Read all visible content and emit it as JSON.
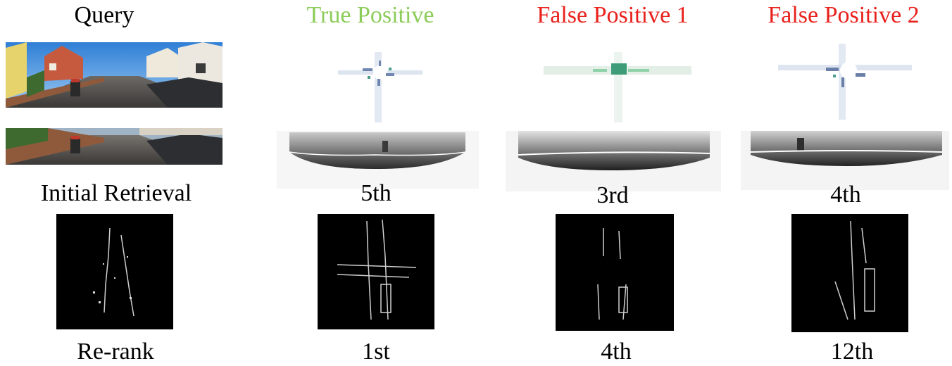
{
  "headers": {
    "query": "Query",
    "true_positive": "True Positive",
    "false_positive_1": "False Positive 1",
    "false_positive_2": "False Positive 2"
  },
  "row_labels": {
    "initial_retrieval": "Initial Retrieval",
    "re_rank": "Re-rank"
  },
  "initial_ranks": {
    "true_positive": "5th",
    "false_positive_1": "3rd",
    "false_positive_2": "4th"
  },
  "rerank_ranks": {
    "true_positive": "1st",
    "false_positive_1": "4th",
    "false_positive_2": "12th"
  },
  "colors": {
    "true_positive": "#8ccc5a",
    "false_positive": "#e8211c",
    "default_text": "#000000"
  }
}
